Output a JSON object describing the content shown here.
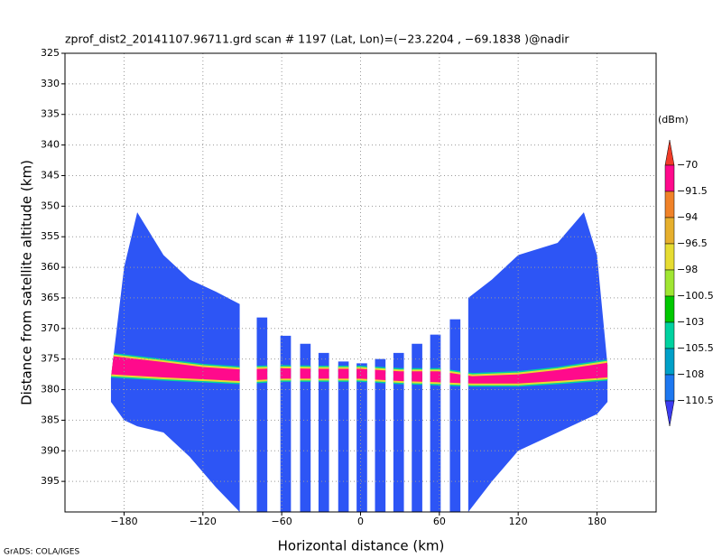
{
  "chart_data": {
    "type": "profile",
    "title": "zprof_dist2_20141107.96711.grd  scan # 1197  (Lat, Lon)=(−23.2204 , −69.1838 )@nadir",
    "x_label": "Horizontal distance (km)",
    "y_label": "Distance from satellite altitude (km)",
    "credit": "GrADS: COLA/IGES",
    "xlim": [
      -225,
      225
    ],
    "xticks": [
      {
        "value": -180,
        "label": "−180"
      },
      {
        "value": -120,
        "label": "−120"
      },
      {
        "value": -60,
        "label": "−60"
      },
      0,
      60,
      120,
      180
    ],
    "ylim": [
      325,
      400
    ],
    "y_inverted": true,
    "yticks": [
      325,
      330,
      335,
      340,
      345,
      350,
      355,
      360,
      365,
      370,
      375,
      380,
      385,
      390,
      395
    ],
    "grid": true,
    "swath_color": "#2d55f5",
    "swaths": [
      {
        "x": [
          -190,
          -180,
          -170,
          -150,
          -130,
          -110,
          -92
        ],
        "top": [
          378,
          360,
          351,
          358,
          362,
          364,
          366
        ],
        "bottom": [
          382,
          385,
          386,
          387,
          391,
          396,
          400
        ]
      },
      {
        "x": [
          -79,
          -71
        ],
        "top": [
          368.2,
          368.2
        ],
        "bottom": [
          400,
          400
        ]
      },
      {
        "x": [
          -61,
          -53
        ],
        "top": [
          371.2,
          371.2
        ],
        "bottom": [
          400,
          400
        ]
      },
      {
        "x": [
          -46,
          -38
        ],
        "top": [
          372.5,
          372.5
        ],
        "bottom": [
          400,
          400
        ]
      },
      {
        "x": [
          -32,
          -24
        ],
        "top": [
          374,
          374
        ],
        "bottom": [
          400,
          400
        ]
      },
      {
        "x": [
          -17,
          -9
        ],
        "top": [
          375.4,
          375.4
        ],
        "bottom": [
          400,
          400
        ]
      },
      {
        "x": [
          -3,
          5
        ],
        "top": [
          375.7,
          375.7
        ],
        "bottom": [
          400,
          400
        ]
      },
      {
        "x": [
          11,
          19
        ],
        "top": [
          375,
          375
        ],
        "bottom": [
          400,
          400
        ]
      },
      {
        "x": [
          25,
          33
        ],
        "top": [
          374,
          374
        ],
        "bottom": [
          400,
          400
        ]
      },
      {
        "x": [
          39,
          47
        ],
        "top": [
          372.5,
          372.5
        ],
        "bottom": [
          400,
          400
        ]
      },
      {
        "x": [
          53,
          61
        ],
        "top": [
          371,
          371
        ],
        "bottom": [
          400,
          400
        ]
      },
      {
        "x": [
          68,
          76
        ],
        "top": [
          368.5,
          368.5
        ],
        "bottom": [
          400,
          400
        ]
      },
      {
        "x": [
          82,
          100,
          120,
          150,
          170,
          180,
          188
        ],
        "top": [
          365,
          362,
          358,
          356,
          351,
          358,
          376
        ],
        "bottom": [
          400,
          395,
          390,
          387,
          385,
          384,
          382
        ]
      }
    ],
    "layer": {
      "color": "#ff0a8c",
      "x": [
        -190,
        -150,
        -120,
        -92,
        -60,
        -30,
        0,
        30,
        60,
        85,
        120,
        150,
        188
      ],
      "top": [
        374.5,
        375.5,
        376.3,
        376.7,
        376.5,
        376.6,
        376.6,
        377,
        377,
        377.8,
        377.5,
        376.8,
        375.6
      ],
      "bottom": [
        377.5,
        378,
        378.3,
        378.6,
        378.2,
        378.2,
        378.2,
        378.6,
        378.8,
        379,
        379,
        378.6,
        378
      ]
    },
    "colorbar": {
      "unit": "(dBm)",
      "levels": [
        {
          "value": -70,
          "label": "−70"
        },
        {
          "value": -91.5,
          "label": "−91.5"
        },
        {
          "value": -94,
          "label": "−94"
        },
        {
          "value": -96.5,
          "label": "−96.5"
        },
        {
          "value": -98,
          "label": "−98"
        },
        {
          "value": -100.5,
          "label": "−100.5"
        },
        {
          "value": -103,
          "label": "−103"
        },
        {
          "value": -105.5,
          "label": "−105.5"
        },
        {
          "value": -108,
          "label": "−108"
        },
        {
          "value": -110.5,
          "label": "−110.5"
        }
      ],
      "colors": [
        "#f03c28",
        "#ff0a8c",
        "#f08228",
        "#e6af2d",
        "#e6dc32",
        "#a0e632",
        "#00c800",
        "#00d2a0",
        "#00a0c8",
        "#1e78f0",
        "#3c3cf0"
      ]
    }
  }
}
